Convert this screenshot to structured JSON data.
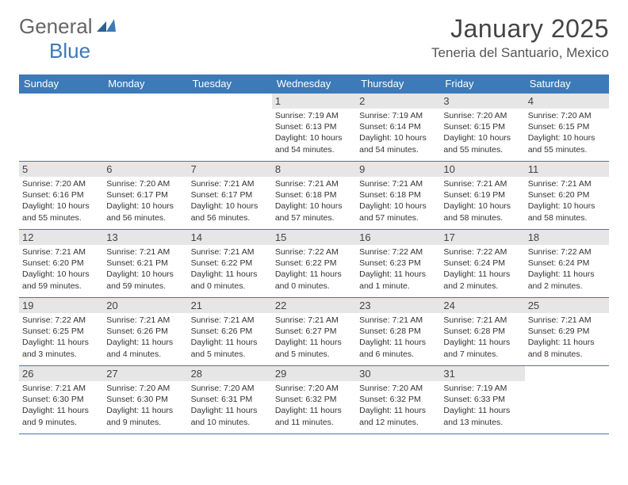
{
  "logo": {
    "general": "General",
    "blue": "Blue"
  },
  "header": {
    "month_title": "January 2025",
    "location": "Teneria del Santuario, Mexico"
  },
  "colors": {
    "primary": "#3d7ab8",
    "day_bg": "#e6e6e6",
    "text": "#333333"
  },
  "day_names": [
    "Sunday",
    "Monday",
    "Tuesday",
    "Wednesday",
    "Thursday",
    "Friday",
    "Saturday"
  ],
  "weeks": [
    [
      null,
      null,
      null,
      {
        "n": "1",
        "sr": "7:19 AM",
        "ss": "6:13 PM",
        "dl": "10 hours and 54 minutes."
      },
      {
        "n": "2",
        "sr": "7:19 AM",
        "ss": "6:14 PM",
        "dl": "10 hours and 54 minutes."
      },
      {
        "n": "3",
        "sr": "7:20 AM",
        "ss": "6:15 PM",
        "dl": "10 hours and 55 minutes."
      },
      {
        "n": "4",
        "sr": "7:20 AM",
        "ss": "6:15 PM",
        "dl": "10 hours and 55 minutes."
      }
    ],
    [
      {
        "n": "5",
        "sr": "7:20 AM",
        "ss": "6:16 PM",
        "dl": "10 hours and 55 minutes."
      },
      {
        "n": "6",
        "sr": "7:20 AM",
        "ss": "6:17 PM",
        "dl": "10 hours and 56 minutes."
      },
      {
        "n": "7",
        "sr": "7:21 AM",
        "ss": "6:17 PM",
        "dl": "10 hours and 56 minutes."
      },
      {
        "n": "8",
        "sr": "7:21 AM",
        "ss": "6:18 PM",
        "dl": "10 hours and 57 minutes."
      },
      {
        "n": "9",
        "sr": "7:21 AM",
        "ss": "6:18 PM",
        "dl": "10 hours and 57 minutes."
      },
      {
        "n": "10",
        "sr": "7:21 AM",
        "ss": "6:19 PM",
        "dl": "10 hours and 58 minutes."
      },
      {
        "n": "11",
        "sr": "7:21 AM",
        "ss": "6:20 PM",
        "dl": "10 hours and 58 minutes."
      }
    ],
    [
      {
        "n": "12",
        "sr": "7:21 AM",
        "ss": "6:20 PM",
        "dl": "10 hours and 59 minutes."
      },
      {
        "n": "13",
        "sr": "7:21 AM",
        "ss": "6:21 PM",
        "dl": "10 hours and 59 minutes."
      },
      {
        "n": "14",
        "sr": "7:21 AM",
        "ss": "6:22 PM",
        "dl": "11 hours and 0 minutes."
      },
      {
        "n": "15",
        "sr": "7:22 AM",
        "ss": "6:22 PM",
        "dl": "11 hours and 0 minutes."
      },
      {
        "n": "16",
        "sr": "7:22 AM",
        "ss": "6:23 PM",
        "dl": "11 hours and 1 minute."
      },
      {
        "n": "17",
        "sr": "7:22 AM",
        "ss": "6:24 PM",
        "dl": "11 hours and 2 minutes."
      },
      {
        "n": "18",
        "sr": "7:22 AM",
        "ss": "6:24 PM",
        "dl": "11 hours and 2 minutes."
      }
    ],
    [
      {
        "n": "19",
        "sr": "7:22 AM",
        "ss": "6:25 PM",
        "dl": "11 hours and 3 minutes."
      },
      {
        "n": "20",
        "sr": "7:21 AM",
        "ss": "6:26 PM",
        "dl": "11 hours and 4 minutes."
      },
      {
        "n": "21",
        "sr": "7:21 AM",
        "ss": "6:26 PM",
        "dl": "11 hours and 5 minutes."
      },
      {
        "n": "22",
        "sr": "7:21 AM",
        "ss": "6:27 PM",
        "dl": "11 hours and 5 minutes."
      },
      {
        "n": "23",
        "sr": "7:21 AM",
        "ss": "6:28 PM",
        "dl": "11 hours and 6 minutes."
      },
      {
        "n": "24",
        "sr": "7:21 AM",
        "ss": "6:28 PM",
        "dl": "11 hours and 7 minutes."
      },
      {
        "n": "25",
        "sr": "7:21 AM",
        "ss": "6:29 PM",
        "dl": "11 hours and 8 minutes."
      }
    ],
    [
      {
        "n": "26",
        "sr": "7:21 AM",
        "ss": "6:30 PM",
        "dl": "11 hours and 9 minutes."
      },
      {
        "n": "27",
        "sr": "7:20 AM",
        "ss": "6:30 PM",
        "dl": "11 hours and 9 minutes."
      },
      {
        "n": "28",
        "sr": "7:20 AM",
        "ss": "6:31 PM",
        "dl": "11 hours and 10 minutes."
      },
      {
        "n": "29",
        "sr": "7:20 AM",
        "ss": "6:32 PM",
        "dl": "11 hours and 11 minutes."
      },
      {
        "n": "30",
        "sr": "7:20 AM",
        "ss": "6:32 PM",
        "dl": "11 hours and 12 minutes."
      },
      {
        "n": "31",
        "sr": "7:19 AM",
        "ss": "6:33 PM",
        "dl": "11 hours and 13 minutes."
      },
      null
    ]
  ],
  "labels": {
    "sunrise": "Sunrise: ",
    "sunset": "Sunset: ",
    "daylight": "Daylight: "
  }
}
